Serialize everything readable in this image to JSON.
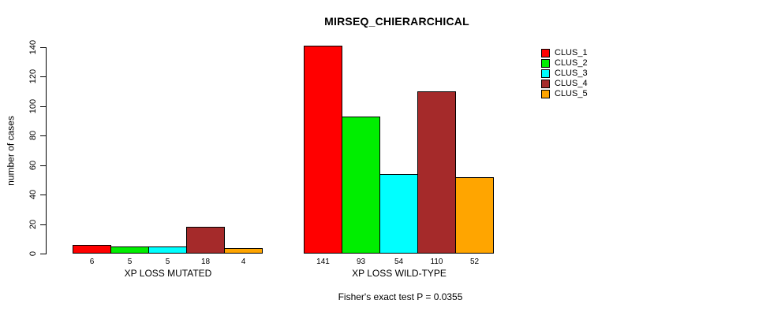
{
  "title": "MIRSEQ_CHIERARCHICAL",
  "footer": "Fisher's exact test P = 0.0355",
  "chart_data": {
    "type": "bar",
    "title": "MIRSEQ_CHIERARCHICAL",
    "xlabel": "",
    "ylabel": "number of cases",
    "ylim": [
      0,
      140
    ],
    "yticks": [
      0,
      20,
      40,
      60,
      80,
      100,
      120,
      140
    ],
    "grid": false,
    "legend_position": "right",
    "groups": [
      {
        "label": "XP LOSS MUTATED",
        "values": [
          6,
          5,
          5,
          18,
          4
        ]
      },
      {
        "label": "XP LOSS WILD-TYPE",
        "values": [
          141,
          93,
          54,
          110,
          52
        ]
      }
    ],
    "series_colors": [
      "#FF0000",
      "#00EE00",
      "#00FFFF",
      "#A52A2A",
      "#FFA500"
    ],
    "legend": [
      {
        "label": "CLUS_1",
        "color": "#FF0000"
      },
      {
        "label": "CLUS_2",
        "color": "#00EE00"
      },
      {
        "label": "CLUS_3",
        "color": "#00FFFF"
      },
      {
        "label": "CLUS_4",
        "color": "#A52A2A"
      },
      {
        "label": "CLUS_5",
        "color": "#FFA500"
      }
    ],
    "annotation": "Fisher's exact test P = 0.0355"
  }
}
